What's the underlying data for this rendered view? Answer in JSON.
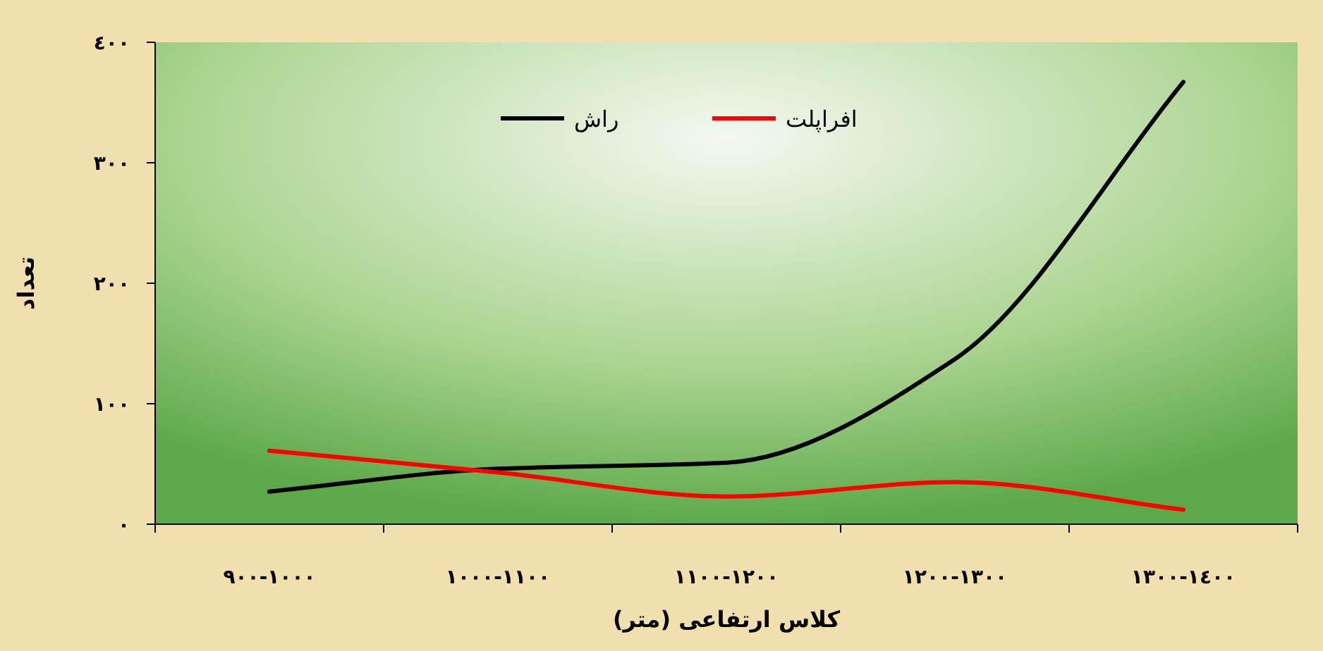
{
  "chart_data": {
    "type": "line",
    "xlabel": "کلاس ارتفاعی (متر)",
    "ylabel": "تعداد",
    "categories": [
      "٩٠٠-١٠٠٠",
      "١٠٠٠-١١٠٠",
      "١١٠٠-١٢٠٠",
      "١٢٠٠-١٣٠٠",
      "١٣٠٠-١٤٠٠"
    ],
    "series": [
      {
        "name": "راش",
        "color": "#000000",
        "values": [
          27,
          46,
          51,
          137,
          367
        ]
      },
      {
        "name": "افراپلت",
        "color": "#ff0000",
        "values": [
          61,
          43,
          23,
          35,
          12
        ]
      }
    ],
    "ylim": [
      0,
      400
    ],
    "yticks": [
      {
        "value": 0,
        "label": "٠"
      },
      {
        "value": 100,
        "label": "١٠٠"
      },
      {
        "value": 200,
        "label": "٢٠٠"
      },
      {
        "value": 300,
        "label": "٣٠٠"
      },
      {
        "value": 400,
        "label": "٤٠٠"
      }
    ],
    "grid": false,
    "legend": "top",
    "marker": "none",
    "line_style": "solid"
  }
}
